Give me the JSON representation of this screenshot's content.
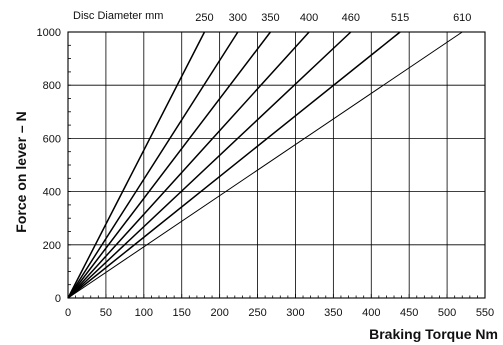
{
  "chart_data": {
    "type": "line",
    "title": "Disc Diameter mm",
    "xlabel": "Braking Torque Nm",
    "ylabel": "Force on lever – N",
    "xlim": [
      0,
      550
    ],
    "ylim": [
      0,
      1000
    ],
    "x_ticks": [
      "0",
      "50",
      "100",
      "150",
      "200",
      "250",
      "300",
      "350",
      "400",
      "450",
      "500",
      "550"
    ],
    "y_ticks": [
      "0",
      "200",
      "400",
      "600",
      "800",
      "1000"
    ],
    "grid": true,
    "series": [
      {
        "name": "250",
        "x": [
          0,
          180
        ],
        "y": [
          0,
          1000
        ]
      },
      {
        "name": "300",
        "x": [
          0,
          224
        ],
        "y": [
          0,
          1000
        ]
      },
      {
        "name": "350",
        "x": [
          0,
          267
        ],
        "y": [
          0,
          1000
        ]
      },
      {
        "name": "400",
        "x": [
          0,
          318
        ],
        "y": [
          0,
          1000
        ]
      },
      {
        "name": "460",
        "x": [
          0,
          373
        ],
        "y": [
          0,
          1000
        ]
      },
      {
        "name": "515",
        "x": [
          0,
          438
        ],
        "y": [
          0,
          1000
        ]
      },
      {
        "name": "610",
        "x": [
          0,
          520
        ],
        "y": [
          0,
          1000
        ]
      }
    ],
    "colors": {
      "line": "#000000",
      "grid": "#000000"
    }
  }
}
